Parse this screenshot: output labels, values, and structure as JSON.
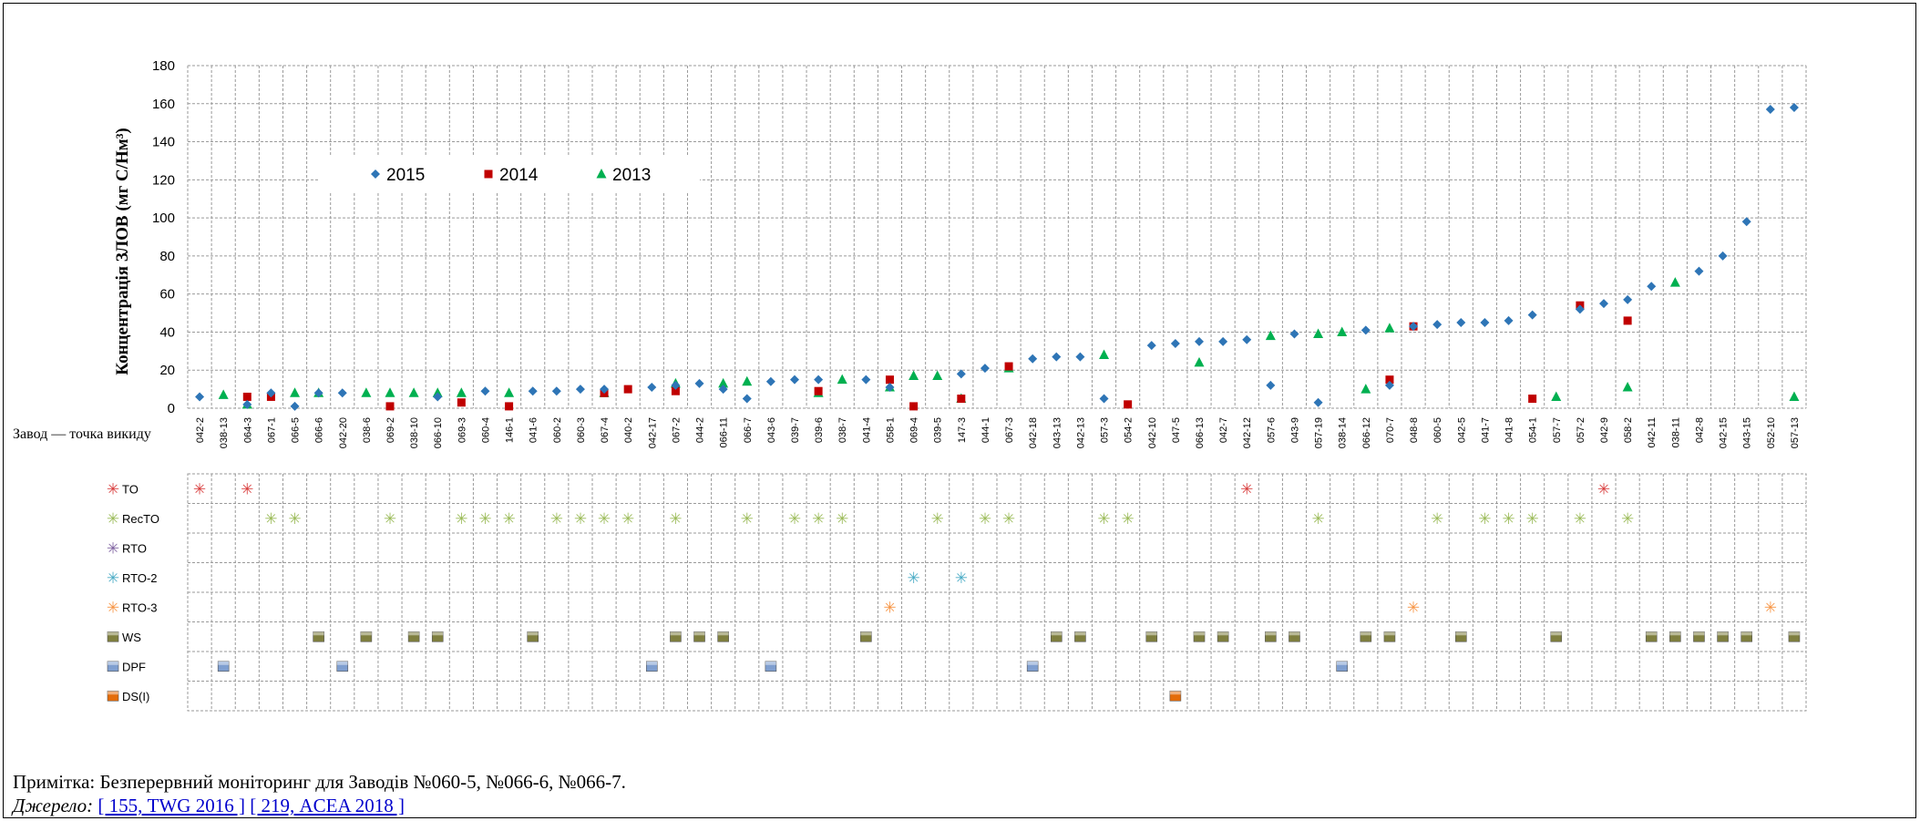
{
  "chart_data": {
    "type": "scatter",
    "ylabel": "Концентрація ЗЛОВ (мг С/Нм³)",
    "xlabel": "Завод — точка викиду",
    "ylim": [
      0,
      180
    ],
    "yticks": [
      0,
      20,
      40,
      60,
      80,
      100,
      120,
      140,
      160,
      180
    ],
    "grid": true,
    "legend_position": "top-left",
    "categories": [
      "042-2",
      "038-13",
      "064-3",
      "067-1",
      "066-5",
      "066-6",
      "042-20",
      "038-6",
      "069-2",
      "038-10",
      "066-10",
      "069-3",
      "060-4",
      "146-1",
      "041-6",
      "060-2",
      "060-3",
      "067-4",
      "040-2",
      "042-17",
      "067-2",
      "044-2",
      "066-11",
      "066-7",
      "043-6",
      "039-7",
      "039-6",
      "038-7",
      "041-4",
      "058-1",
      "069-4",
      "039-5",
      "147-3",
      "044-1",
      "067-3",
      "042-18",
      "043-13",
      "042-13",
      "057-3",
      "054-2",
      "042-10",
      "047-5",
      "066-13",
      "042-7",
      "042-12",
      "057-6",
      "043-9",
      "057-19",
      "038-14",
      "066-12",
      "070-7",
      "048-8",
      "060-5",
      "042-5",
      "041-7",
      "041-8",
      "054-1",
      "057-7",
      "057-2",
      "042-9",
      "058-2",
      "042-11",
      "038-11",
      "042-8",
      "042-15",
      "043-15",
      "052-10",
      "057-13"
    ],
    "series": [
      {
        "name": "2015",
        "color": "#2e75b6",
        "marker": "diamond",
        "values": [
          6,
          null,
          2,
          8,
          1,
          8,
          8,
          null,
          null,
          null,
          6,
          null,
          9,
          null,
          9,
          9,
          10,
          10,
          null,
          11,
          12,
          13,
          10,
          5,
          14,
          15,
          15,
          null,
          15,
          11,
          null,
          null,
          18,
          21,
          null,
          26,
          27,
          27,
          5,
          null,
          33,
          34,
          35,
          35,
          36,
          12,
          39,
          3,
          null,
          41,
          12,
          43,
          44,
          45,
          45,
          46,
          49,
          null,
          52,
          55,
          57,
          64,
          null,
          72,
          80,
          98,
          157,
          158
        ]
      },
      {
        "name": "2014",
        "color": "#c00000",
        "marker": "square",
        "values": [
          null,
          null,
          6,
          6,
          null,
          null,
          null,
          null,
          1,
          null,
          null,
          3,
          null,
          1,
          null,
          null,
          null,
          8,
          10,
          null,
          9,
          null,
          null,
          null,
          null,
          null,
          9,
          null,
          null,
          15,
          1,
          null,
          5,
          null,
          22,
          null,
          null,
          null,
          null,
          2,
          null,
          null,
          null,
          null,
          null,
          null,
          null,
          null,
          null,
          null,
          15,
          43,
          null,
          null,
          null,
          null,
          5,
          null,
          54,
          null,
          46,
          null,
          null,
          null,
          null,
          null,
          null,
          null
        ]
      },
      {
        "name": "2013",
        "color": "#00b050",
        "marker": "triangle",
        "values": [
          null,
          7,
          2,
          null,
          8,
          8,
          null,
          8,
          8,
          8,
          8,
          8,
          null,
          8,
          null,
          null,
          null,
          8,
          null,
          null,
          13,
          null,
          13,
          14,
          null,
          null,
          8,
          15,
          null,
          11,
          17,
          17,
          5,
          null,
          21,
          null,
          null,
          null,
          28,
          null,
          null,
          null,
          24,
          null,
          null,
          38,
          null,
          39,
          40,
          10,
          42,
          null,
          null,
          null,
          null,
          null,
          null,
          6,
          null,
          null,
          11,
          null,
          66,
          null,
          null,
          null,
          null,
          6
        ]
      }
    ],
    "techniques": [
      {
        "label": "TO",
        "color": "#d94040",
        "symbol": "✳",
        "cols": [
          "042-2",
          "064-3",
          "042-12",
          "042-9"
        ]
      },
      {
        "label": "RecTO",
        "color": "#9bbb59",
        "symbol": "✳",
        "cols": [
          "067-1",
          "066-5",
          "069-2",
          "069-3",
          "060-4",
          "146-1",
          "060-2",
          "060-3",
          "067-4",
          "040-2",
          "067-2",
          "066-7",
          "039-7",
          "039-6",
          "038-7",
          "039-5",
          "044-1",
          "067-3",
          "057-3",
          "054-2",
          "057-19",
          "060-5",
          "041-7",
          "041-8",
          "054-1",
          "057-2",
          "058-2"
        ]
      },
      {
        "label": "RTO",
        "color": "#8064a2",
        "symbol": "✳",
        "cols": []
      },
      {
        "label": "RTO-2",
        "color": "#4bacc6",
        "symbol": "✳",
        "cols": [
          "069-4",
          "147-3"
        ]
      },
      {
        "label": "RTO-3",
        "color": "#f79646",
        "symbol": "✳",
        "cols": [
          "058-1",
          "048-8",
          "052-10"
        ]
      },
      {
        "label": "WS",
        "color": "#7f7f3f",
        "symbol": "■",
        "cols": [
          "066-6",
          "038-6",
          "038-10",
          "066-10",
          "041-6",
          "067-2",
          "044-2",
          "066-11",
          "041-4",
          "043-13",
          "042-13",
          "042-10",
          "066-13",
          "042-7",
          "057-6",
          "043-9",
          "066-12",
          "070-7",
          "042-5",
          "057-7",
          "042-11",
          "038-11",
          "042-8",
          "042-15",
          "043-15",
          "057-13"
        ]
      },
      {
        "label": "DPF",
        "color": "#7f9fd0",
        "symbol": "■",
        "cols": [
          "038-13",
          "042-20",
          "042-17",
          "043-6",
          "042-18",
          "038-14"
        ]
      },
      {
        "label": "DS(I)",
        "color": "#e46c0a",
        "symbol": "■",
        "cols": [
          "047-5"
        ]
      }
    ]
  },
  "note": "Примітка: Безперервний моніторинг для Заводів №060-5, №066-6, №066-7.",
  "source": {
    "label": "Джерело:",
    "ref1": "[ 155, TWG 2016 ]",
    "ref2": "[ 219, ACEA 2018 ]"
  }
}
